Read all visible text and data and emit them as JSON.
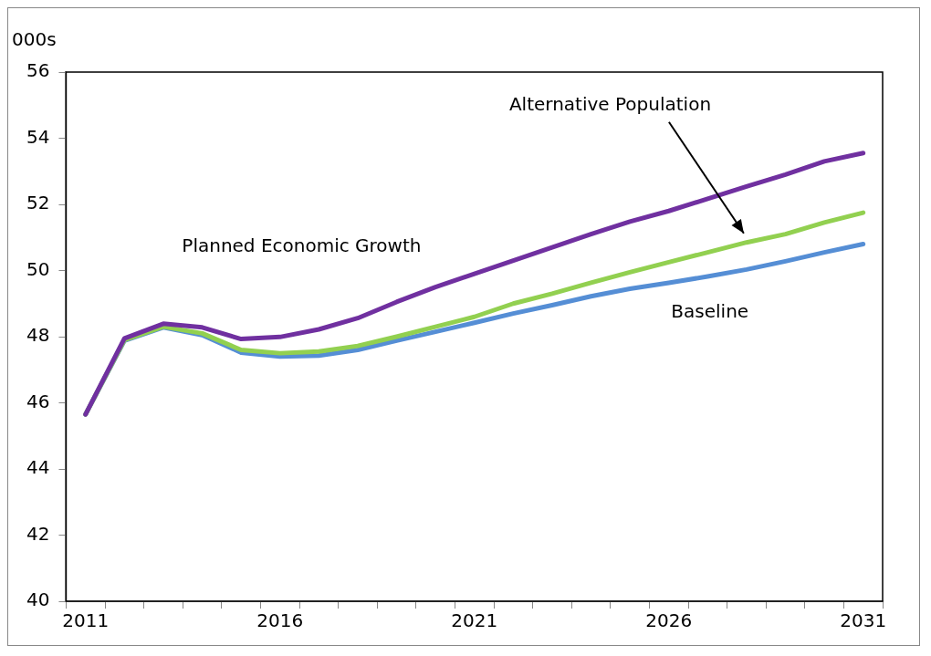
{
  "chart_data": {
    "type": "line",
    "ylabel": "000s",
    "categories": [
      "2011",
      null,
      null,
      null,
      null,
      "2016",
      null,
      null,
      null,
      null,
      "2021",
      null,
      null,
      null,
      null,
      "2026",
      null,
      null,
      null,
      null,
      "2031"
    ],
    "series": [
      {
        "name": "Planned Economic Growth",
        "color": "#7030a0",
        "values": [
          45.65,
          47.95,
          48.39,
          48.28,
          47.93,
          47.99,
          48.22,
          48.56,
          49.05,
          49.5,
          49.9,
          50.3,
          50.7,
          51.1,
          51.48,
          51.8,
          52.17,
          52.54,
          52.9,
          53.3,
          53.55
        ]
      },
      {
        "name": "Alternative Population",
        "color": "#92d050",
        "values": [
          45.65,
          47.9,
          48.3,
          48.1,
          47.6,
          47.5,
          47.55,
          47.72,
          48.0,
          48.3,
          48.6,
          49.0,
          49.3,
          49.63,
          49.95,
          50.25,
          50.55,
          50.85,
          51.1,
          51.45,
          51.75
        ]
      },
      {
        "name": "Baseline",
        "color": "#558ed5",
        "values": [
          45.65,
          47.88,
          48.28,
          48.05,
          47.52,
          47.4,
          47.43,
          47.6,
          47.88,
          48.15,
          48.42,
          48.7,
          48.95,
          49.22,
          49.45,
          49.63,
          49.82,
          50.03,
          50.28,
          50.55,
          50.8
        ]
      }
    ],
    "ylim": [
      40,
      56
    ],
    "yticks": [
      40,
      42,
      44,
      46,
      48,
      50,
      52,
      54,
      56
    ],
    "grid": false,
    "legend": false,
    "marker": "none",
    "line_style": "solid"
  }
}
